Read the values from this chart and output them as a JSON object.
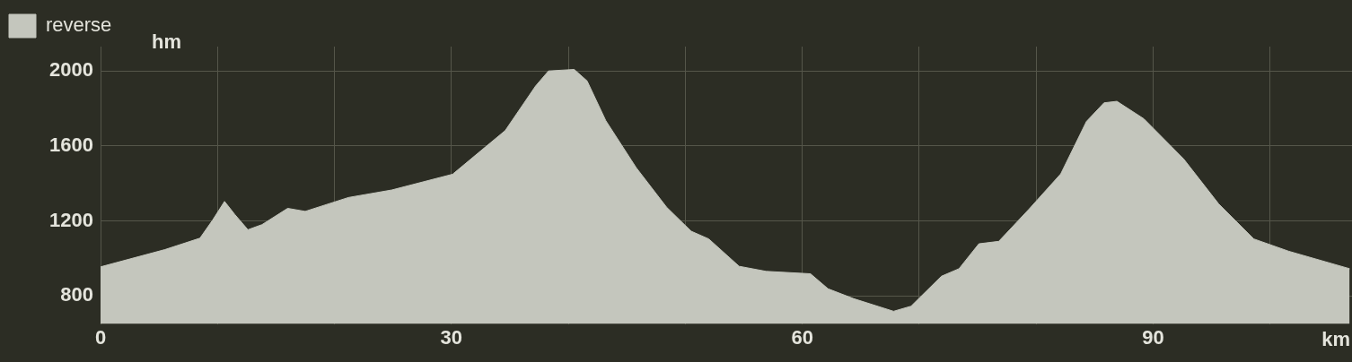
{
  "chart_data": {
    "type": "area",
    "xlabel": "km",
    "ylabel": "hm",
    "legend": "top left",
    "grid": true,
    "marker": "none",
    "xlim": [
      0,
      107
    ],
    "ylim": [
      650,
      2130
    ],
    "xticks": [
      0,
      {
        "value": 10,
        "label": null
      },
      {
        "value": 20,
        "label": null
      },
      30,
      {
        "value": 40,
        "label": null
      },
      {
        "value": 50,
        "label": null
      },
      60,
      {
        "value": 70,
        "label": null
      },
      {
        "value": 80,
        "label": null
      },
      90,
      {
        "value": 100,
        "label": null
      }
    ],
    "yticks": [
      800,
      1200,
      1600,
      2000
    ],
    "series": [
      {
        "name": "reverse",
        "color": "#c4c6bd",
        "x": [
          0,
          5.5,
          8.5,
          9.6,
          10.6,
          11.5,
          12.6,
          13.8,
          16,
          17.5,
          21.2,
          24.9,
          30.1,
          32.3,
          34.6,
          37.2,
          38.3,
          40.5,
          41.6,
          43.2,
          45.8,
          48.4,
          50.5,
          52,
          54.6,
          56.9,
          60.7,
          62.2,
          64.4,
          67.8,
          69.3,
          71.9,
          73.4,
          75.1,
          76.8,
          79.4,
          82.1,
          84.3,
          85.8,
          86.9,
          89.2,
          92.6,
          95.6,
          98.6,
          101.6,
          106.8
        ],
        "values": [
          955,
          1047,
          1108,
          1206,
          1304,
          1233,
          1153,
          1180,
          1267,
          1251,
          1325,
          1365,
          1449,
          1563,
          1682,
          1920,
          2000,
          2008,
          1947,
          1735,
          1484,
          1273,
          1145,
          1104,
          958,
          931,
          918,
          838,
          785,
          718,
          745,
          905,
          945,
          1078,
          1091,
          1264,
          1451,
          1731,
          1830,
          1838,
          1745,
          1531,
          1291,
          1104,
          1038,
          945
        ]
      }
    ]
  }
}
